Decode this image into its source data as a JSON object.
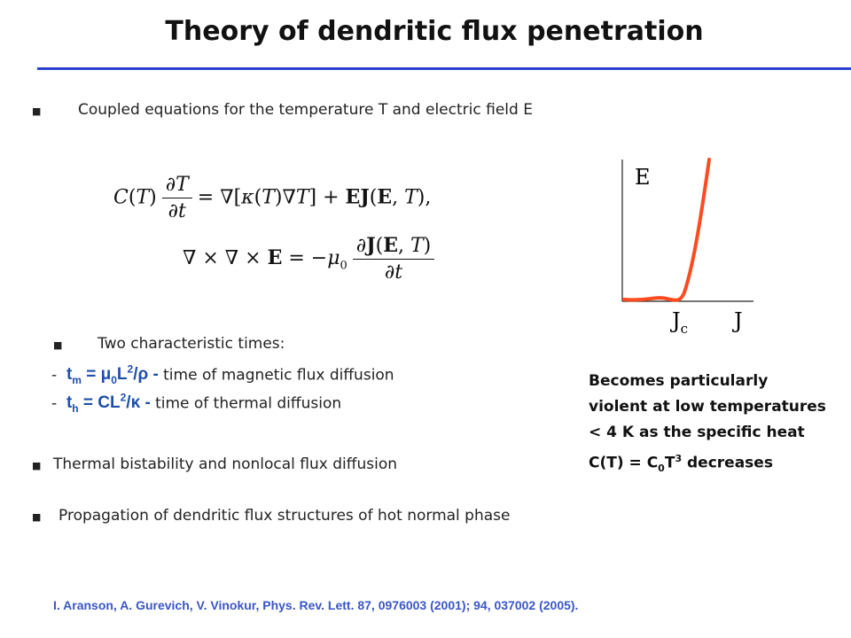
{
  "title": "Theory of dendritic flux penetration",
  "bullets": {
    "coupled": "Coupled equations for the temperature T and electric field E",
    "two_times": "Two characteristic times:",
    "bistability": "Thermal bistability and nonlocal flux diffusion",
    "propagation": "Propagation of dendritic flux structures of hot normal phase"
  },
  "times": [
    {
      "dash": "-",
      "sym": "t",
      "sub": "m",
      "formula": " = μ",
      "formula_sub": "0",
      "formula2": "L",
      "formula_sup": "2",
      "formula3": "/ρ - ",
      "desc": "time of magnetic flux diffusion"
    },
    {
      "dash": "-",
      "sym": "t",
      "sub": "h",
      "formula": " = CL",
      "formula_sup": "2",
      "formula3": "/κ - ",
      "desc": "time of thermal diffusion"
    }
  ],
  "graph": {
    "y_label": "E",
    "x_label": "J",
    "jc_main": "J",
    "jc_sub": "c",
    "curve_color": "#ff4b1f"
  },
  "note": {
    "line1": "Becomes particularly",
    "line2": "violent at low temperatures",
    "line3": "< 4 K as the specific heat",
    "line4_a": "C(T) = C",
    "line4_sub": "0",
    "line4_b": "T",
    "line4_sup": "3",
    "line4_c": " decreases"
  },
  "reference": "I. Aranson, A. Gurevich,  V. Vinokur, Phys. Rev. Lett. 87, 0976003 (2001); 94, 037002 (2005)."
}
